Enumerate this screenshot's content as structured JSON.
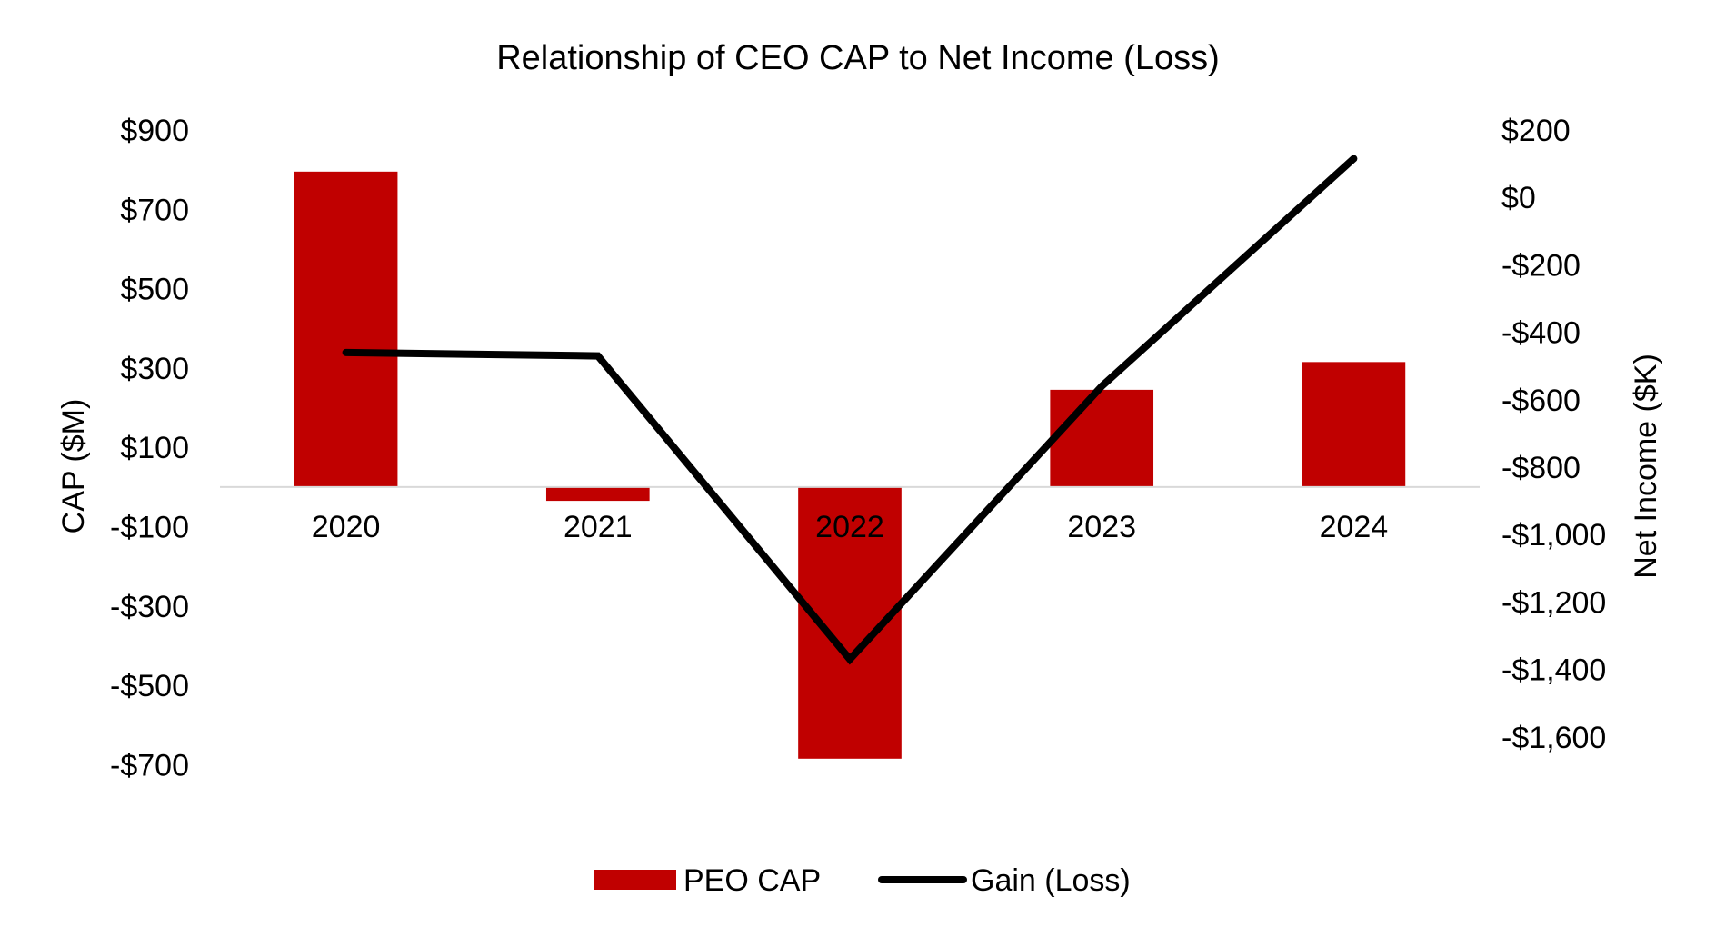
{
  "chart_data": {
    "type": "bar",
    "title": "Relationship of CEO CAP to Net Income (Loss)",
    "categories": [
      "2020",
      "2021",
      "2022",
      "2023",
      "2024"
    ],
    "y_left": {
      "label": "CAP ($M)",
      "range": [
        -800,
        900
      ],
      "tick_values": [
        900,
        700,
        500,
        300,
        100,
        -100,
        -300,
        -500,
        -700
      ],
      "tick_labels": [
        "$900",
        "$700",
        "$500",
        "$300",
        "$100",
        "-$100",
        "-$300",
        "-$500",
        "-$700"
      ]
    },
    "y_right": {
      "label": "Net Income ($K)",
      "range": [
        -1800,
        200
      ],
      "tick_values": [
        200,
        0,
        -200,
        -400,
        -600,
        -800,
        -1000,
        -1200,
        -1400,
        -1600
      ],
      "tick_labels": [
        "$200",
        "$0",
        "-$200",
        "-$400",
        "-$600",
        "-$800",
        "-$1,000",
        "-$1,200",
        "-$1,400",
        "-$1,600"
      ]
    },
    "series": [
      {
        "name": "PEO CAP",
        "type": "bar",
        "axis": "left",
        "color": "#C00000",
        "values": [
          795,
          -35,
          -685,
          245,
          315
        ]
      },
      {
        "name": "Gain (Loss)",
        "type": "line",
        "axis": "right",
        "color": "#000000",
        "values": [
          -460,
          -470,
          -1370,
          -560,
          115
        ]
      }
    ],
    "legend_position": "bottom",
    "grid": false
  }
}
